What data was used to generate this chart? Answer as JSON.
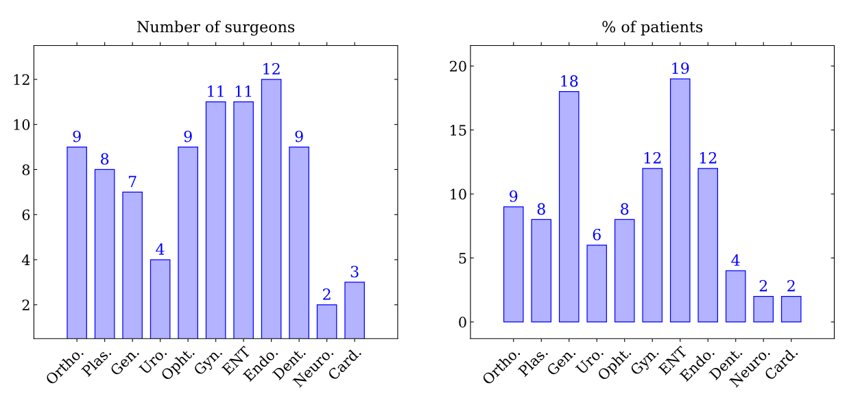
{
  "chart_data": [
    {
      "type": "bar",
      "title": "Number of surgeons",
      "categories": [
        "Ortho.",
        "Plas.",
        "Gen.",
        "Uro.",
        "Opht.",
        "Gyn.",
        "ENT",
        "Endo.",
        "Dent.",
        "Neuro.",
        "Card."
      ],
      "values": [
        9,
        8,
        7,
        4,
        9,
        11,
        11,
        12,
        9,
        2,
        3
      ],
      "color": "#b3b3ff",
      "ylim": [
        0.5,
        13.5
      ],
      "yticks": [
        2,
        4,
        6,
        8,
        10,
        12
      ],
      "data_labels": true,
      "grid": false
    },
    {
      "type": "bar",
      "title": "% of patients",
      "categories": [
        "Ortho.",
        "Plas.",
        "Gen.",
        "Uro.",
        "Opht.",
        "Gyn.",
        "ENT",
        "Endo.",
        "Dent.",
        "Neuro.",
        "Card."
      ],
      "values": [
        9,
        8,
        18,
        6,
        8,
        12,
        19,
        12,
        4,
        2,
        2
      ],
      "color": "#b3b3ff",
      "ylim": [
        -1.3,
        21.6
      ],
      "yticks": [
        0,
        5,
        10,
        15,
        20
      ],
      "data_labels": true,
      "grid": false
    }
  ]
}
